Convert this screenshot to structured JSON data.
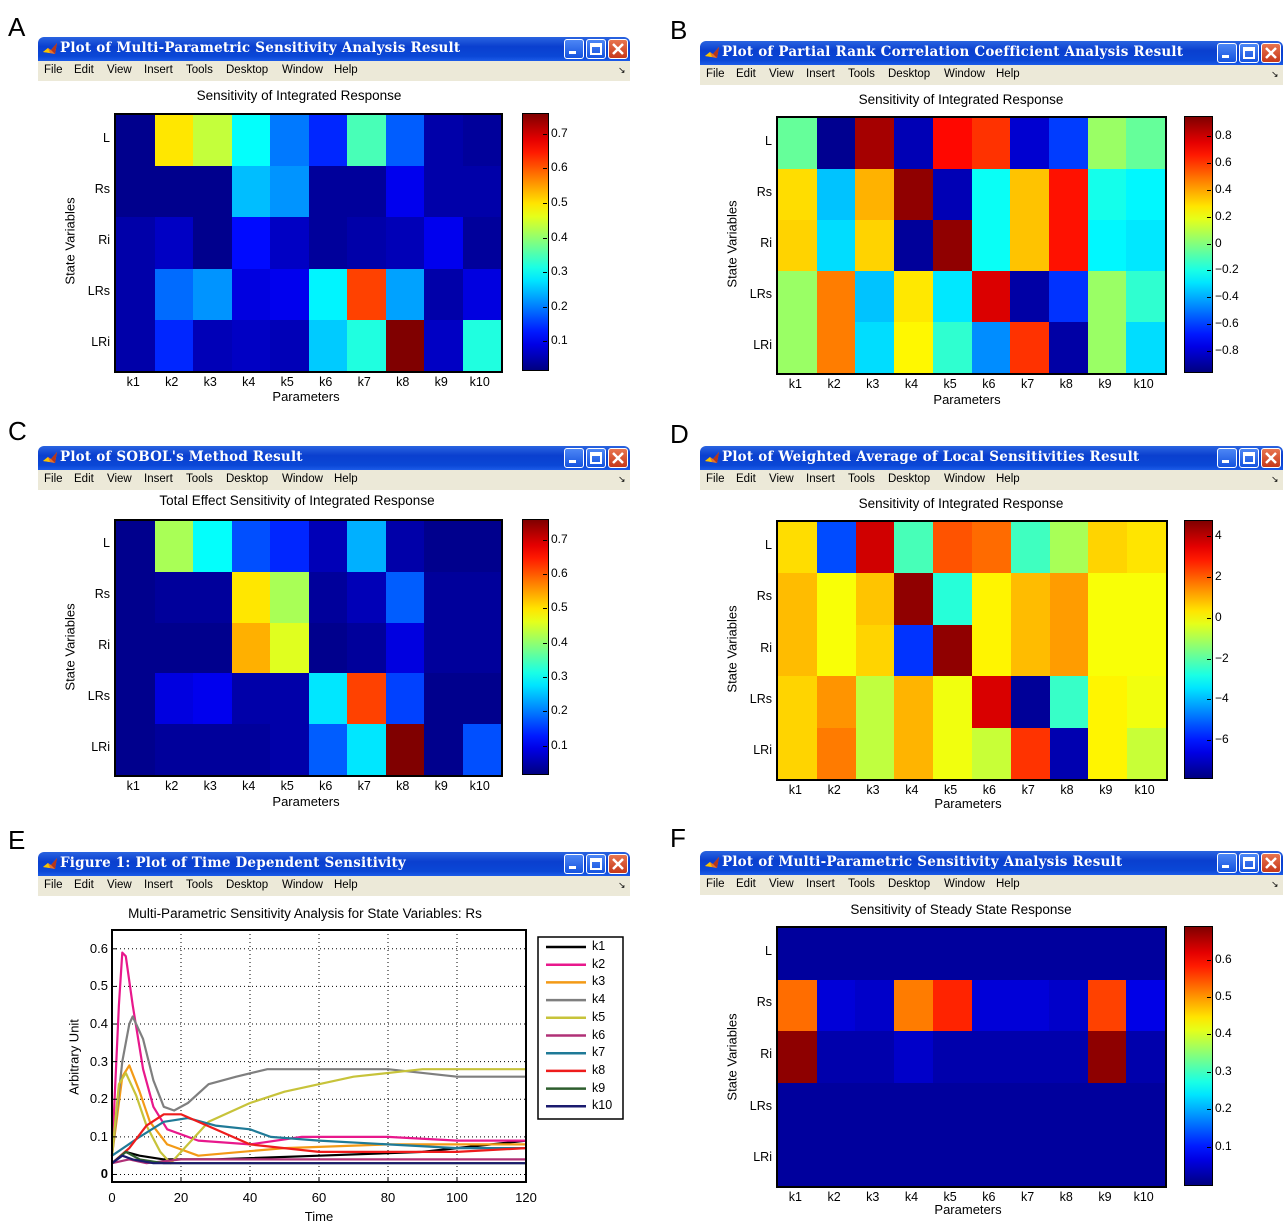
{
  "menu": [
    "File",
    "Edit",
    "View",
    "Insert",
    "Tools",
    "Desktop",
    "Window",
    "Help"
  ],
  "panels": {
    "A": {
      "letter": "A",
      "window_title": "Plot of Multi-Parametric Sensitivity Analysis Result",
      "chart_title": "Sensitivity of Integrated Response",
      "xlabel": "Parameters",
      "ylabel": "State Variables",
      "cbar_ticks": [
        "0.7",
        "0.6",
        "0.5",
        "0.4",
        "0.3",
        "0.2",
        "0.1"
      ]
    },
    "B": {
      "letter": "B",
      "window_title": "Plot of Partial Rank Correlation Coefficient Analysis Result",
      "chart_title": "Sensitivity of Integrated Response",
      "xlabel": "Parameters",
      "ylabel": "State Variables",
      "cbar_ticks": [
        "0.8",
        "0.6",
        "0.4",
        "0.2",
        "0",
        "−0.2",
        "−0.4",
        "−0.6",
        "−0.8"
      ]
    },
    "C": {
      "letter": "C",
      "window_title": "Plot of SOBOL's Method Result",
      "chart_title": "Total Effect Sensitivity of Integrated Response",
      "xlabel": "Parameters",
      "ylabel": "State Variables",
      "cbar_ticks": [
        "0.7",
        "0.6",
        "0.5",
        "0.4",
        "0.3",
        "0.2",
        "0.1"
      ]
    },
    "D": {
      "letter": "D",
      "window_title": "Plot of Weighted Average of Local Sensitivities Result",
      "chart_title": "Sensitivity of Integrated Response",
      "xlabel": "Parameters",
      "ylabel": "State Variables",
      "cbar_ticks": [
        "4",
        "2",
        "0",
        "−2",
        "−4",
        "−6"
      ]
    },
    "E": {
      "letter": "E",
      "window_title": "Figure 1: Plot of Time Dependent Sensitivity",
      "chart_title": "Multi-Parametric Sensitivity Analysis for State Variables: Rs",
      "xlabel": "Time",
      "ylabel": "Arbitrary Unit"
    },
    "F": {
      "letter": "F",
      "window_title": "Plot of Multi-Parametric Sensitivity Analysis Result",
      "chart_title": "Sensitivity of Steady State Response",
      "xlabel": "Parameters",
      "ylabel": "State Variables",
      "cbar_ticks": [
        "0.6",
        "0.5",
        "0.4",
        "0.3",
        "0.2",
        "0.1"
      ]
    }
  },
  "chart_data": [
    {
      "panel": "A",
      "type": "heatmap",
      "title": "Sensitivity of Integrated Response",
      "xlabel": "Parameters",
      "ylabel": "State Variables",
      "x_categories": [
        "k1",
        "k2",
        "k3",
        "k4",
        "k5",
        "k6",
        "k7",
        "k8",
        "k9",
        "k10"
      ],
      "y_categories": [
        "L",
        "Rs",
        "Ri",
        "LRs",
        "LRi"
      ],
      "clim": [
        0.02,
        0.76
      ],
      "values": [
        [
          0.03,
          0.5,
          0.44,
          0.3,
          0.2,
          0.14,
          0.35,
          0.18,
          0.05,
          0.04
        ],
        [
          0.03,
          0.03,
          0.03,
          0.25,
          0.22,
          0.04,
          0.04,
          0.1,
          0.05,
          0.05
        ],
        [
          0.05,
          0.07,
          0.03,
          0.12,
          0.07,
          0.04,
          0.05,
          0.06,
          0.1,
          0.04
        ],
        [
          0.05,
          0.19,
          0.22,
          0.09,
          0.1,
          0.29,
          0.62,
          0.23,
          0.05,
          0.09
        ],
        [
          0.05,
          0.14,
          0.06,
          0.07,
          0.06,
          0.26,
          0.32,
          0.76,
          0.07,
          0.32
        ]
      ]
    },
    {
      "panel": "B",
      "type": "heatmap",
      "title": "Sensitivity of Integrated Response",
      "xlabel": "Parameters",
      "ylabel": "State Variables",
      "x_categories": [
        "k1",
        "k2",
        "k3",
        "k4",
        "k5",
        "k6",
        "k7",
        "k8",
        "k9",
        "k10"
      ],
      "y_categories": [
        "L",
        "Rs",
        "Ri",
        "LRs",
        "LRi"
      ],
      "clim": [
        -0.95,
        0.95
      ],
      "values": [
        [
          -0.05,
          -0.92,
          0.88,
          -0.85,
          0.7,
          0.62,
          -0.8,
          -0.6,
          0.05,
          -0.05
        ],
        [
          0.3,
          -0.35,
          0.38,
          0.92,
          -0.85,
          -0.22,
          0.35,
          0.68,
          -0.2,
          -0.25
        ],
        [
          0.32,
          -0.3,
          0.32,
          -0.9,
          0.92,
          -0.22,
          0.35,
          0.68,
          -0.25,
          -0.28
        ],
        [
          0.05,
          0.48,
          -0.35,
          0.28,
          -0.28,
          0.78,
          -0.88,
          -0.62,
          0.05,
          -0.15
        ],
        [
          0.05,
          0.48,
          -0.3,
          0.25,
          -0.15,
          -0.45,
          0.62,
          -0.88,
          0.05,
          -0.3
        ]
      ]
    },
    {
      "panel": "C",
      "type": "heatmap",
      "title": "Total Effect Sensitivity of Integrated Response",
      "xlabel": "Parameters",
      "ylabel": "State Variables",
      "x_categories": [
        "k1",
        "k2",
        "k3",
        "k4",
        "k5",
        "k6",
        "k7",
        "k8",
        "k9",
        "k10"
      ],
      "y_categories": [
        "L",
        "Rs",
        "Ri",
        "LRs",
        "LRi"
      ],
      "clim": [
        0.02,
        0.76
      ],
      "values": [
        [
          0.03,
          0.42,
          0.3,
          0.17,
          0.14,
          0.06,
          0.24,
          0.05,
          0.03,
          0.03
        ],
        [
          0.03,
          0.04,
          0.04,
          0.5,
          0.42,
          0.04,
          0.06,
          0.18,
          0.04,
          0.04
        ],
        [
          0.03,
          0.03,
          0.03,
          0.54,
          0.46,
          0.03,
          0.04,
          0.09,
          0.04,
          0.04
        ],
        [
          0.03,
          0.09,
          0.1,
          0.05,
          0.05,
          0.28,
          0.62,
          0.16,
          0.03,
          0.03
        ],
        [
          0.03,
          0.04,
          0.04,
          0.04,
          0.05,
          0.18,
          0.28,
          0.76,
          0.03,
          0.17
        ]
      ]
    },
    {
      "panel": "D",
      "type": "heatmap",
      "title": "Sensitivity of Integrated Response",
      "xlabel": "Parameters",
      "ylabel": "State Variables",
      "x_categories": [
        "k1",
        "k2",
        "k3",
        "k4",
        "k5",
        "k6",
        "k7",
        "k8",
        "k9",
        "k10"
      ],
      "y_categories": [
        "L",
        "Rs",
        "Ri",
        "LRs",
        "LRi"
      ],
      "clim": [
        -7.8,
        4.8
      ],
      "values": [
        [
          0.5,
          -5.3,
          3.8,
          -2.2,
          2.2,
          1.9,
          -2.3,
          -1.0,
          0.6,
          0.4
        ],
        [
          0.9,
          0.0,
          0.8,
          4.6,
          -2.6,
          0.2,
          0.9,
          1.3,
          0.0,
          0.0
        ],
        [
          0.9,
          0.0,
          0.6,
          -5.6,
          4.6,
          0.2,
          0.9,
          1.3,
          0.0,
          0.0
        ],
        [
          0.6,
          1.4,
          -0.7,
          1.0,
          -0.1,
          3.7,
          -7.5,
          -2.4,
          0.2,
          -0.1
        ],
        [
          0.6,
          1.7,
          -0.7,
          1.0,
          -0.1,
          -0.6,
          2.6,
          -7.2,
          0.2,
          -0.6
        ]
      ]
    },
    {
      "panel": "E",
      "type": "line",
      "title": "Multi-Parametric Sensitivity Analysis for State Variables: Rs",
      "xlabel": "Time",
      "ylabel": "Arbitrary Unit",
      "xlim": [
        0,
        120
      ],
      "ylim": [
        -0.02,
        0.65
      ],
      "xticks": [
        0,
        20,
        40,
        60,
        80,
        100,
        120
      ],
      "yticks": [
        0,
        0.1,
        0.2,
        0.3,
        0.4,
        0.5,
        0.6
      ],
      "grid": true,
      "legend_position": "top-right",
      "series": [
        {
          "name": "k1",
          "color": "#000000",
          "points": [
            [
              0,
              0.03
            ],
            [
              4,
              0.06
            ],
            [
              8,
              0.05
            ],
            [
              15,
              0.04
            ],
            [
              30,
              0.04
            ],
            [
              60,
              0.05
            ],
            [
              90,
              0.06
            ],
            [
              110,
              0.08
            ],
            [
              120,
              0.09
            ]
          ]
        },
        {
          "name": "k2",
          "color": "#e8188c",
          "points": [
            [
              0,
              0.05
            ],
            [
              2,
              0.45
            ],
            [
              3,
              0.59
            ],
            [
              4,
              0.58
            ],
            [
              6,
              0.45
            ],
            [
              9,
              0.28
            ],
            [
              12,
              0.18
            ],
            [
              16,
              0.12
            ],
            [
              25,
              0.09
            ],
            [
              40,
              0.08
            ],
            [
              55,
              0.1
            ],
            [
              80,
              0.1
            ],
            [
              100,
              0.09
            ],
            [
              120,
              0.09
            ]
          ]
        },
        {
          "name": "k3",
          "color": "#f39a16",
          "points": [
            [
              0,
              0.05
            ],
            [
              3,
              0.26
            ],
            [
              5,
              0.29
            ],
            [
              8,
              0.22
            ],
            [
              11,
              0.14
            ],
            [
              16,
              0.08
            ],
            [
              25,
              0.05
            ],
            [
              50,
              0.07
            ],
            [
              80,
              0.08
            ],
            [
              100,
              0.08
            ],
            [
              120,
              0.08
            ]
          ]
        },
        {
          "name": "k4",
          "color": "#7f7f7f",
          "points": [
            [
              0,
              0.05
            ],
            [
              3,
              0.3
            ],
            [
              5,
              0.4
            ],
            [
              6,
              0.42
            ],
            [
              9,
              0.36
            ],
            [
              12,
              0.25
            ],
            [
              15,
              0.18
            ],
            [
              18,
              0.17
            ],
            [
              22,
              0.19
            ],
            [
              28,
              0.24
            ],
            [
              36,
              0.26
            ],
            [
              45,
              0.28
            ],
            [
              60,
              0.28
            ],
            [
              80,
              0.28
            ],
            [
              100,
              0.26
            ],
            [
              120,
              0.26
            ]
          ]
        },
        {
          "name": "k5",
          "color": "#c7c33a",
          "points": [
            [
              0,
              0.05
            ],
            [
              2,
              0.24
            ],
            [
              4,
              0.27
            ],
            [
              7,
              0.21
            ],
            [
              10,
              0.13
            ],
            [
              14,
              0.06
            ],
            [
              17,
              0.03
            ],
            [
              22,
              0.08
            ],
            [
              28,
              0.14
            ],
            [
              40,
              0.19
            ],
            [
              50,
              0.22
            ],
            [
              70,
              0.26
            ],
            [
              90,
              0.28
            ],
            [
              110,
              0.28
            ],
            [
              120,
              0.28
            ]
          ]
        },
        {
          "name": "k6",
          "color": "#b03077",
          "points": [
            [
              0,
              0.03
            ],
            [
              5,
              0.04
            ],
            [
              10,
              0.03
            ],
            [
              20,
              0.04
            ],
            [
              40,
              0.04
            ],
            [
              60,
              0.04
            ],
            [
              90,
              0.04
            ],
            [
              120,
              0.04
            ]
          ]
        },
        {
          "name": "k7",
          "color": "#1f7a97",
          "points": [
            [
              0,
              0.05
            ],
            [
              8,
              0.1
            ],
            [
              15,
              0.14
            ],
            [
              22,
              0.15
            ],
            [
              30,
              0.13
            ],
            [
              40,
              0.12
            ],
            [
              46,
              0.1
            ],
            [
              60,
              0.09
            ],
            [
              80,
              0.08
            ],
            [
              100,
              0.07
            ],
            [
              120,
              0.07
            ]
          ]
        },
        {
          "name": "k8",
          "color": "#ee1c1c",
          "points": [
            [
              0,
              0.03
            ],
            [
              5,
              0.07
            ],
            [
              10,
              0.13
            ],
            [
              15,
              0.16
            ],
            [
              20,
              0.16
            ],
            [
              30,
              0.12
            ],
            [
              40,
              0.08
            ],
            [
              60,
              0.06
            ],
            [
              80,
              0.06
            ],
            [
              100,
              0.06
            ],
            [
              120,
              0.07
            ]
          ]
        },
        {
          "name": "k9",
          "color": "#2e5e2e",
          "points": [
            [
              0,
              0.03
            ],
            [
              4,
              0.06
            ],
            [
              8,
              0.04
            ],
            [
              15,
              0.03
            ],
            [
              40,
              0.03
            ],
            [
              80,
              0.03
            ],
            [
              120,
              0.03
            ]
          ]
        },
        {
          "name": "k10",
          "color": "#1a1a6e",
          "points": [
            [
              0,
              0.03
            ],
            [
              3,
              0.05
            ],
            [
              6,
              0.04
            ],
            [
              12,
              0.03
            ],
            [
              40,
              0.03
            ],
            [
              80,
              0.03
            ],
            [
              120,
              0.03
            ]
          ]
        }
      ]
    },
    {
      "panel": "F",
      "type": "heatmap",
      "title": "Sensitivity of Steady State Response",
      "xlabel": "Parameters",
      "ylabel": "State Variables",
      "x_categories": [
        "k1",
        "k2",
        "k3",
        "k4",
        "k5",
        "k6",
        "k7",
        "k8",
        "k9",
        "k10"
      ],
      "y_categories": [
        "L",
        "Rs",
        "Ri",
        "LRs",
        "LRi"
      ],
      "clim": [
        0.0,
        0.69
      ],
      "values": [
        [
          0.02,
          0.02,
          0.02,
          0.02,
          0.02,
          0.02,
          0.02,
          0.02,
          0.02,
          0.02
        ],
        [
          0.53,
          0.06,
          0.05,
          0.52,
          0.58,
          0.06,
          0.06,
          0.05,
          0.56,
          0.07
        ],
        [
          0.68,
          0.03,
          0.03,
          0.05,
          0.03,
          0.03,
          0.03,
          0.03,
          0.68,
          0.03
        ],
        [
          0.02,
          0.02,
          0.02,
          0.02,
          0.02,
          0.02,
          0.02,
          0.02,
          0.02,
          0.02
        ],
        [
          0.02,
          0.02,
          0.02,
          0.02,
          0.02,
          0.02,
          0.02,
          0.02,
          0.02,
          0.02
        ]
      ]
    }
  ]
}
